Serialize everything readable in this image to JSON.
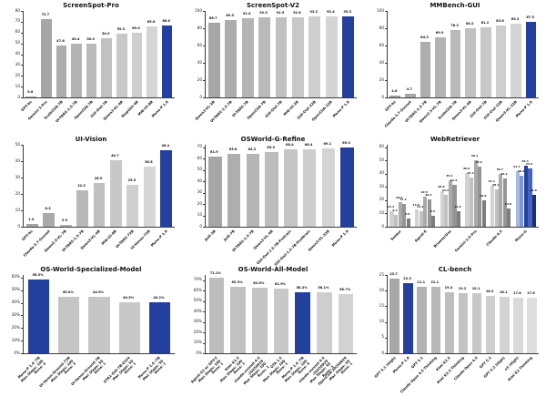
{
  "page": {
    "background": "#ffffff"
  },
  "colors": {
    "accent_blue": "#24409f",
    "axis": "#3a3a3a"
  },
  "chart_data": [
    {
      "type": "bar",
      "title": "ScreenSpot-Pro",
      "categories": [
        "GPT-4o",
        "Gemini-3-Pro",
        "ScaleCUA-7B",
        "UI-TARS-1.5-7B",
        "OpenCUA-7B",
        "GUI-Owl-7B",
        "Qwen3-VL-4B",
        "StepGUI-4B",
        "MAI-UI-8B",
        "Mono-P 1.0"
      ],
      "values": [
        0.8,
        72.7,
        47.6,
        49.4,
        50.0,
        54.9,
        59.3,
        60.0,
        65.8,
        66.6
      ],
      "ylim": [
        0,
        80
      ],
      "ytick_values": [
        0,
        10,
        20,
        30,
        40,
        50,
        60,
        70,
        80
      ],
      "ytick_labels": [
        "0",
        "10",
        "20",
        "30",
        "40",
        "50",
        "60",
        "70",
        "80"
      ],
      "highlight_indices": [
        9
      ],
      "gray_ramp": [
        "#9f9f9f",
        "#dcdcdc"
      ],
      "value_suffix": ""
    },
    {
      "type": "bar",
      "title": "ScreenSpot-V2",
      "categories": [
        "Qwen3-VL-2B",
        "UI-TARS-1.5-7B",
        "UI-TARS-7B",
        "OpenCUA-7B",
        "GUI-Owl-7B",
        "MAI-UI-2B",
        "GUI-Owl-32B",
        "OpenCUA-32B",
        "Mono-P 1.0"
      ],
      "values": [
        86.7,
        89.3,
        91.4,
        92.3,
        92.5,
        92.8,
        93.2,
        93.4,
        93.5
      ],
      "ylim": [
        0,
        100
      ],
      "ytick_values": [
        0,
        20,
        40,
        60,
        80,
        100
      ],
      "ytick_labels": [
        "0",
        "20",
        "40",
        "60",
        "80",
        "100"
      ],
      "highlight_indices": [
        8
      ],
      "gray_ramp": [
        "#a6a6a6",
        "#dcdcdc"
      ],
      "value_suffix": ""
    },
    {
      "type": "bar",
      "title": "MMBench-GUI",
      "categories": [
        "GPT-4o",
        "Claude-3.7-Sonnet",
        "UI-TARS-1.5-7B",
        "Qwen2.5-VL-7B",
        "ScaleCUA-7B",
        "Qwen3-VL-4B",
        "GUI-Owl-7B",
        "GUI-Owl-32B",
        "Qwen3-VL-32B",
        "Mono-P 1.0"
      ],
      "values": [
        2.6,
        4.7,
        64.3,
        69.9,
        78.2,
        80.2,
        81.2,
        83.6,
        85.2,
        87.5
      ],
      "ylim": [
        0,
        100
      ],
      "ytick_values": [
        0,
        20,
        40,
        60,
        80,
        100
      ],
      "ytick_labels": [
        "0",
        "20",
        "40",
        "60",
        "80",
        "100"
      ],
      "highlight_indices": [
        9
      ],
      "gray_ramp": [
        "#9f9f9f",
        "#dcdcdc"
      ],
      "value_suffix": ""
    },
    {
      "type": "bar",
      "title": "UI-Vision",
      "categories": [
        "GPT-4o",
        "Claude-3.7-Sonnet",
        "Qwen2.5-VL-7B",
        "UI-TARS-1.5-7B",
        "Qwen3-VL-4B",
        "MAI-UI-8B",
        "UI-TARS-72B",
        "UI-Venus-72B",
        "Mono-P 1.0"
      ],
      "values": [
        1.4,
        8.3,
        0.9,
        22.3,
        26.9,
        40.7,
        25.5,
        36.8,
        46.4
      ],
      "ylim": [
        0,
        50
      ],
      "ytick_values": [
        0,
        10,
        20,
        30,
        40,
        50
      ],
      "ytick_labels": [
        "0",
        "10",
        "20",
        "30",
        "40",
        "50"
      ],
      "highlight_indices": [
        8
      ],
      "gray_ramp": [
        "#a2a2a2",
        "#dedede"
      ],
      "value_suffix": ""
    },
    {
      "type": "bar",
      "title": "OSWorld-G-Refine",
      "categories": [
        "Jedi-3B",
        "Jedi-7B",
        "UI-TARS-1.5-7B",
        "Qwen3-VL-4B",
        "GUI-Owl-1.5-7B-Pretrain",
        "GUI-Owl-1.5-7B-Posttrain",
        "Qwen3-VL-32B",
        "Mono-P 1.0"
      ],
      "values": [
        61.9,
        63.8,
        64.2,
        65.3,
        68.4,
        68.4,
        69.1,
        69.3
      ],
      "ylim": [
        0,
        72
      ],
      "ytick_values": [
        0,
        10,
        20,
        30,
        40,
        50,
        60,
        70
      ],
      "ytick_labels": [
        "0",
        "10",
        "20",
        "30",
        "40",
        "50",
        "60",
        "70"
      ],
      "highlight_indices": [
        7
      ],
      "gray_ramp": [
        "#a6a6a6",
        "#dcdcdc"
      ],
      "value_suffix": ""
    },
    {
      "type": "grouped-bar",
      "title": "WebRetriever",
      "groups": [
        {
          "label": "Seeker",
          "values": [
            11.4,
            9.2,
            18.9,
            17.1,
            5.9
          ]
        },
        {
          "label": "Agent-E",
          "values": [
            13.0,
            11.4,
            22.5,
            20.4,
            8.3
          ]
        },
        {
          "label": "BrowserUse",
          "values": [
            26.6,
            24.2,
            35.1,
            31.4,
            11.9
          ]
        },
        {
          "label": "Gemini-2.5-Pro",
          "values": [
            40.9,
            37.1,
            50.1,
            45.2,
            19.9
          ]
        },
        {
          "label": "Claude-4.5",
          "values": [
            31.1,
            28.1,
            39.7,
            36.2,
            14.0
          ]
        },
        {
          "label": "Mono-G",
          "values": [
            41.7,
            38.4,
            46.4,
            44.2,
            24.0
          ]
        }
      ],
      "ylim": [
        0,
        62
      ],
      "ytick_values": [
        0,
        10,
        20,
        30,
        40,
        50,
        60
      ],
      "ytick_labels": [
        "0",
        "10",
        "20",
        "30",
        "40",
        "50",
        "60"
      ],
      "highlight_group": 5,
      "group_shades": [
        "#d2d2d2",
        "#c0c0c0",
        "#aaaaaa",
        "#959595",
        "#7d7d7d"
      ],
      "highlight_shades": [
        "#a9bae5",
        "#7b97d8",
        "#24409f",
        "#4663bd",
        "#1b2f74"
      ],
      "value_suffix": ""
    },
    {
      "type": "bar",
      "title": "OS-World-Specialized-Model",
      "categories": [
        "Mono-P 1.0 /7B\nMax Steps: 100\nRuns: 4",
        "UI-Venus-Ground-72B\nMax Steps: 100\nRuns: 3",
        "UI-Venus-Ground-7B\nMax Steps: 50\nRuns: 1",
        "GTA1-GUI-7B-0324\nMax Steps: 50\nRuns: 1",
        "Mono-P 1.0 /7B\nMax Steps: 50\nRuns: 1"
      ],
      "values": [
        58.3,
        45.0,
        44.9,
        40.5,
        40.2
      ],
      "ylim": [
        0,
        62
      ],
      "ytick_values": [
        0,
        10,
        20,
        30,
        40,
        50,
        60
      ],
      "ytick_labels": [
        "0%",
        "10%",
        "20%",
        "30%",
        "40%",
        "50%",
        "60%"
      ],
      "highlight_indices": [
        0,
        4
      ],
      "gray_ramp": [
        "#c3c3c3",
        "#c9c9c9"
      ],
      "value_suffix": "%"
    },
    {
      "type": "bar",
      "title": "OS-World-All-Model",
      "categories": [
        "Agent-S3 w/ GPT-5\nMax Steps: 100\nRuns: 1",
        "Kimi K2.5\nMax Steps: 100\nRuns: 1",
        "claude-sonnet-4-5\n-20250929\nMax Steps: 100\nRuns: 1",
        "GTA 1.5\nMax Steps: 100\nRuns: 1",
        "Mono-P 1.0 /7B\nMax Steps: 100\nRuns: 4",
        "claude-sonnet-4-5\n-20250929\nMax Steps: 50\nRuns: 3",
        "OpenCUA-20250929\nMax Steps: 50\nRuns: 1"
      ],
      "values": [
        72.1,
        63.3,
        62.8,
        61.9,
        58.2,
        58.1,
        56.7
      ],
      "ylim": [
        0,
        75
      ],
      "ytick_values": [
        0,
        10,
        20,
        30,
        40,
        50,
        60,
        70
      ],
      "ytick_labels": [
        "0%",
        "10%",
        "20%",
        "30%",
        "40%",
        "50%",
        "60%",
        "70%"
      ],
      "highlight_indices": [
        4
      ],
      "gray_ramp": [
        "#bdbdbd",
        "#d2d2d2"
      ],
      "value_suffix": "%"
    },
    {
      "type": "bar",
      "title": "CL-bench",
      "categories": [
        "GPT 5.1 (High)",
        "Mono-P 1.0",
        "GPT 5.1",
        "Claude Opus 4.5 Thinking",
        "Kimi K2.5",
        "Kimi K2.5 Thinking",
        "Claude Opus 4.5",
        "GPT 5.2",
        "GPT 5.2 (High)",
        "o3 (High)",
        "Kimi K2 Thinking"
      ],
      "values": [
        23.7,
        22.3,
        21.1,
        21.1,
        19.4,
        19.2,
        19.1,
        18.3,
        18.1,
        17.8,
        17.6
      ],
      "ylim": [
        0,
        25
      ],
      "ytick_values": [
        0,
        5,
        10,
        15,
        20,
        25
      ],
      "ytick_labels": [
        "0",
        "5",
        "10",
        "15",
        "20",
        "25"
      ],
      "highlight_indices": [
        1
      ],
      "gray_ramp": [
        "#a8a8a8",
        "#dedede"
      ],
      "value_suffix": ""
    }
  ]
}
